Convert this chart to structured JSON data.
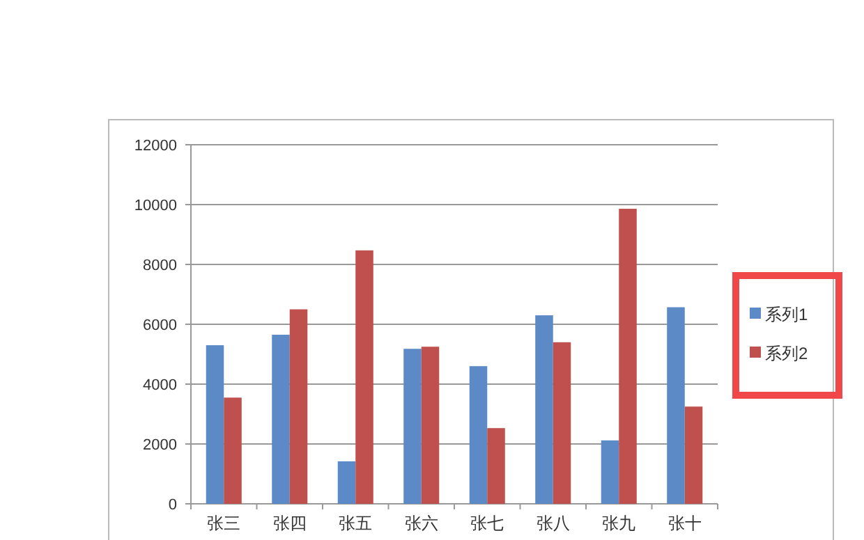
{
  "chart_data": {
    "type": "bar",
    "categories": [
      "张三",
      "张四",
      "张五",
      "张六",
      "张七",
      "张八",
      "张九",
      "张十"
    ],
    "series": [
      {
        "name": "系列1",
        "color": "#5b8ac6",
        "values": [
          5300,
          5650,
          1420,
          5180,
          4600,
          6300,
          2120,
          6570
        ]
      },
      {
        "name": "系列2",
        "color": "#c0504d",
        "values": [
          3550,
          6500,
          8470,
          5250,
          2530,
          5400,
          9860,
          3250
        ]
      }
    ],
    "ylim": [
      0,
      12000
    ],
    "yticks": [
      0,
      2000,
      4000,
      6000,
      8000,
      10000,
      12000
    ],
    "grid": "y",
    "legend": "right"
  }
}
